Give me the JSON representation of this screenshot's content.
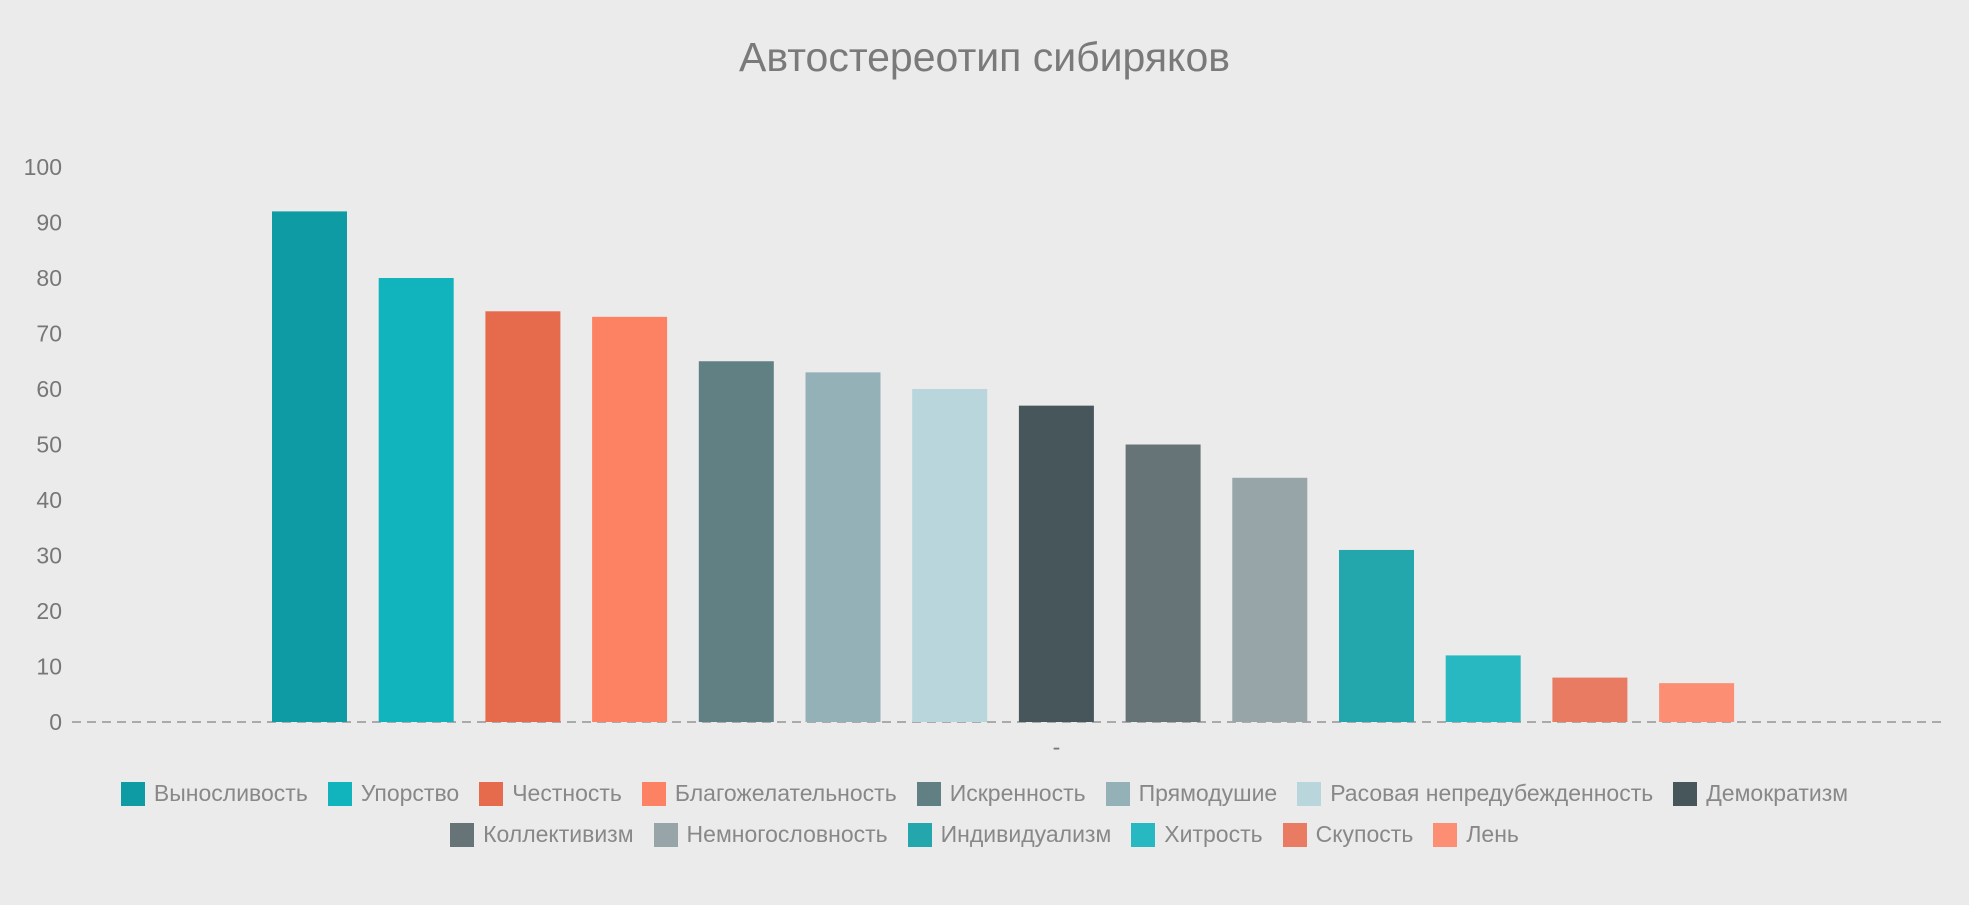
{
  "chart_data": {
    "type": "bar",
    "title": "Автостереотип сибиряков",
    "x_tick_label": "-",
    "categories": [
      "Выносливость",
      "Упорство",
      "Честность",
      "Благожелательность",
      "Искренность",
      "Прямодушие",
      "Расовая непредубежденность",
      "Демократизм",
      "Коллективизм",
      "Немногословность",
      "Индивидуализм",
      "Хитрость",
      "Скупость",
      "Лень"
    ],
    "values": [
      92,
      80,
      74,
      73,
      65,
      63,
      60,
      57,
      50,
      44,
      31,
      12,
      8,
      7
    ],
    "colors": [
      "#0f9ba4",
      "#11b3bd",
      "#e66a4c",
      "#fd8263",
      "#608084",
      "#95b1b8",
      "#b8d6dc",
      "#47565b",
      "#667478",
      "#97a5a9",
      "#23a6ac",
      "#27b8c1",
      "#e97b63",
      "#fc8f73"
    ],
    "ylim": [
      0,
      100
    ],
    "yticks": [
      0,
      10,
      20,
      30,
      40,
      50,
      60,
      70,
      80,
      90,
      100
    ],
    "grid": false,
    "legend_position": "bottom"
  }
}
